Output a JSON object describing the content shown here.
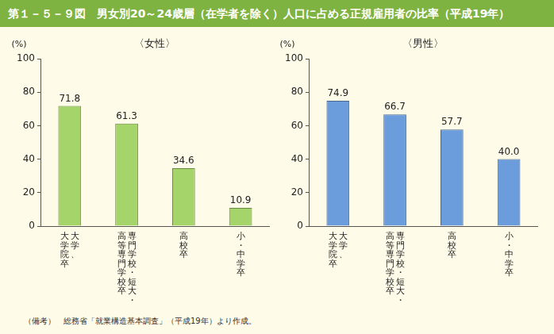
{
  "title": "第１－５－９図　男女別20～24歳層（在学者を除く）人口に占める正規雇用者の比率（平成19年）",
  "note": "（備考）　総務省「就業構造基本調査」（平成19年）より作成。",
  "chart_data": [
    {
      "type": "bar",
      "title": "〈女性〉",
      "y_label": "(%)",
      "categories": [
        [
          "大学、",
          "大学院卒"
        ],
        [
          "専門学校・短大・",
          "高等専門学校卒"
        ],
        [
          "高校卒"
        ],
        [
          "小・中学卒"
        ]
      ],
      "values": [
        71.8,
        61.3,
        34.6,
        10.9
      ],
      "color": "#a5d46a",
      "ylim": [
        0,
        100
      ],
      "yticks": [
        0,
        20,
        40,
        60,
        80,
        100
      ],
      "grid": false,
      "data_labels": true
    },
    {
      "type": "bar",
      "title": "〈男性〉",
      "y_label": "(%)",
      "categories": [
        [
          "大学、",
          "大学院卒"
        ],
        [
          "専門学校・短大・",
          "高等専門学校卒"
        ],
        [
          "高校卒"
        ],
        [
          "小・中学卒"
        ]
      ],
      "values": [
        74.9,
        66.7,
        57.7,
        40.0
      ],
      "value_labels": [
        "74.9",
        "66.7",
        "57.7",
        "40.0"
      ],
      "color": "#6b9ddc",
      "ylim": [
        0,
        100
      ],
      "yticks": [
        0,
        20,
        40,
        60,
        80,
        100
      ],
      "grid": false,
      "data_labels": true
    }
  ]
}
